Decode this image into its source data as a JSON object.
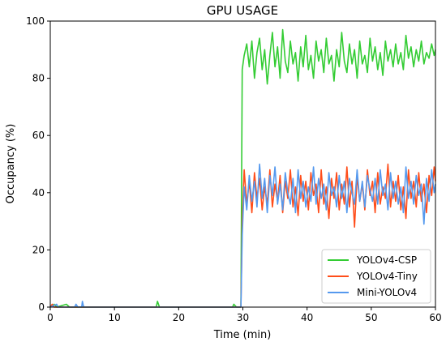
{
  "chart_data": {
    "type": "line",
    "title": "GPU USAGE",
    "xlabel": "Time (min)",
    "ylabel": "Occupancy (%)",
    "xlim": [
      0,
      60
    ],
    "ylim": [
      0,
      100
    ],
    "xticks": [
      0,
      10,
      20,
      30,
      40,
      50,
      60
    ],
    "yticks": [
      0,
      20,
      40,
      60,
      80,
      100
    ],
    "grid": false,
    "legend_position": "bottom-right",
    "series": [
      {
        "name": "YOLOv4-CSP",
        "color": "#33cc33",
        "points": [
          [
            0,
            0
          ],
          [
            0.6,
            1
          ],
          [
            1,
            0
          ],
          [
            2.5,
            1
          ],
          [
            3,
            0
          ],
          [
            16.5,
            0
          ],
          [
            16.7,
            2
          ],
          [
            17,
            0
          ],
          [
            28.4,
            0
          ],
          [
            28.6,
            1
          ],
          [
            29,
            0
          ],
          [
            29.7,
            0
          ],
          [
            29.9,
            83
          ],
          [
            30.2,
            88
          ],
          [
            30.6,
            92
          ],
          [
            31,
            84
          ],
          [
            31.4,
            93
          ],
          [
            31.8,
            80
          ],
          [
            32.2,
            89
          ],
          [
            32.6,
            94
          ],
          [
            33,
            83
          ],
          [
            33.4,
            90
          ],
          [
            33.8,
            78
          ],
          [
            34.2,
            88
          ],
          [
            34.6,
            96
          ],
          [
            35,
            84
          ],
          [
            35.4,
            91
          ],
          [
            35.8,
            80
          ],
          [
            36.2,
            97
          ],
          [
            36.6,
            86
          ],
          [
            37,
            82
          ],
          [
            37.4,
            93
          ],
          [
            37.8,
            85
          ],
          [
            38.2,
            89
          ],
          [
            38.6,
            79
          ],
          [
            39,
            91
          ],
          [
            39.4,
            84
          ],
          [
            39.8,
            95
          ],
          [
            40.2,
            83
          ],
          [
            40.6,
            88
          ],
          [
            41,
            80
          ],
          [
            41.4,
            93
          ],
          [
            41.8,
            86
          ],
          [
            42.2,
            90
          ],
          [
            42.6,
            82
          ],
          [
            43,
            94
          ],
          [
            43.4,
            85
          ],
          [
            43.8,
            88
          ],
          [
            44.2,
            79
          ],
          [
            44.6,
            90
          ],
          [
            45,
            84
          ],
          [
            45.4,
            96
          ],
          [
            45.8,
            86
          ],
          [
            46.2,
            82
          ],
          [
            46.6,
            92
          ],
          [
            47,
            85
          ],
          [
            47.4,
            90
          ],
          [
            47.8,
            80
          ],
          [
            48.2,
            93
          ],
          [
            48.6,
            85
          ],
          [
            49,
            88
          ],
          [
            49.4,
            82
          ],
          [
            49.8,
            94
          ],
          [
            50.2,
            86
          ],
          [
            50.6,
            91
          ],
          [
            51,
            83
          ],
          [
            51.4,
            89
          ],
          [
            51.8,
            81
          ],
          [
            52.2,
            93
          ],
          [
            52.6,
            86
          ],
          [
            53,
            90
          ],
          [
            53.4,
            84
          ],
          [
            53.8,
            92
          ],
          [
            54.2,
            85
          ],
          [
            54.6,
            89
          ],
          [
            55,
            83
          ],
          [
            55.4,
            95
          ],
          [
            55.8,
            87
          ],
          [
            56.2,
            91
          ],
          [
            56.6,
            84
          ],
          [
            57,
            90
          ],
          [
            57.4,
            86
          ],
          [
            57.8,
            93
          ],
          [
            58.2,
            85
          ],
          [
            58.6,
            89
          ],
          [
            59,
            87
          ],
          [
            59.4,
            92
          ],
          [
            59.8,
            88
          ],
          [
            60,
            90
          ]
        ]
      },
      {
        "name": "YOLOv4-Tiny",
        "color": "#ff4d1a",
        "points": [
          [
            0,
            0
          ],
          [
            0.3,
            1
          ],
          [
            0.6,
            0
          ],
          [
            29.7,
            0
          ],
          [
            29.9,
            30
          ],
          [
            30.2,
            48
          ],
          [
            30.6,
            36
          ],
          [
            31,
            44
          ],
          [
            31.4,
            33
          ],
          [
            31.8,
            47
          ],
          [
            32.2,
            38
          ],
          [
            32.6,
            45
          ],
          [
            33,
            34
          ],
          [
            33.4,
            42
          ],
          [
            33.8,
            36
          ],
          [
            34.2,
            48
          ],
          [
            34.6,
            35
          ],
          [
            35,
            43
          ],
          [
            35.4,
            37
          ],
          [
            35.8,
            46
          ],
          [
            36.2,
            33
          ],
          [
            36.6,
            44
          ],
          [
            37,
            38
          ],
          [
            37.4,
            48
          ],
          [
            37.8,
            35
          ],
          [
            38.2,
            42
          ],
          [
            38.6,
            32
          ],
          [
            39,
            46
          ],
          [
            39.4,
            37
          ],
          [
            39.8,
            44
          ],
          [
            40.2,
            34
          ],
          [
            40.6,
            47
          ],
          [
            41,
            39
          ],
          [
            41.4,
            43
          ],
          [
            41.8,
            33
          ],
          [
            42.2,
            48
          ],
          [
            42.6,
            36
          ],
          [
            43,
            42
          ],
          [
            43.4,
            31
          ],
          [
            43.8,
            45
          ],
          [
            44.2,
            38
          ],
          [
            44.6,
            47
          ],
          [
            45,
            34
          ],
          [
            45.4,
            43
          ],
          [
            45.8,
            36
          ],
          [
            46.2,
            49
          ],
          [
            46.6,
            35
          ],
          [
            47,
            44
          ],
          [
            47.4,
            28
          ],
          [
            47.8,
            46
          ],
          [
            48.2,
            37
          ],
          [
            48.6,
            43
          ],
          [
            49,
            34
          ],
          [
            49.4,
            48
          ],
          [
            49.8,
            39
          ],
          [
            50.2,
            44
          ],
          [
            50.6,
            33
          ],
          [
            51,
            47
          ],
          [
            51.4,
            36
          ],
          [
            51.8,
            42
          ],
          [
            52.2,
            38
          ],
          [
            52.6,
            50
          ],
          [
            53,
            35
          ],
          [
            53.4,
            44
          ],
          [
            53.8,
            37
          ],
          [
            54.2,
            46
          ],
          [
            54.6,
            34
          ],
          [
            55,
            42
          ],
          [
            55.4,
            31
          ],
          [
            55.8,
            48
          ],
          [
            56.2,
            38
          ],
          [
            56.6,
            44
          ],
          [
            57,
            35
          ],
          [
            57.4,
            47
          ],
          [
            57.8,
            37
          ],
          [
            58.2,
            43
          ],
          [
            58.6,
            33
          ],
          [
            59,
            46
          ],
          [
            59.4,
            39
          ],
          [
            59.8,
            49
          ],
          [
            60,
            44
          ]
        ]
      },
      {
        "name": "Mini-YOLOv4",
        "color": "#5599ee",
        "points": [
          [
            0,
            0
          ],
          [
            1,
            1
          ],
          [
            1.2,
            0
          ],
          [
            3.8,
            0
          ],
          [
            4,
            1
          ],
          [
            4.3,
            0
          ],
          [
            4.9,
            0
          ],
          [
            5,
            2
          ],
          [
            5.2,
            0
          ],
          [
            29.7,
            0
          ],
          [
            29.9,
            25
          ],
          [
            30.2,
            42
          ],
          [
            30.6,
            34
          ],
          [
            31,
            46
          ],
          [
            31.4,
            37
          ],
          [
            31.8,
            44
          ],
          [
            32.2,
            35
          ],
          [
            32.6,
            50
          ],
          [
            33,
            38
          ],
          [
            33.4,
            45
          ],
          [
            33.8,
            33
          ],
          [
            34.2,
            46
          ],
          [
            34.6,
            39
          ],
          [
            35,
            49
          ],
          [
            35.4,
            36
          ],
          [
            35.8,
            43
          ],
          [
            36.2,
            34
          ],
          [
            36.6,
            47
          ],
          [
            37,
            40
          ],
          [
            37.4,
            36
          ],
          [
            37.8,
            45
          ],
          [
            38.2,
            33
          ],
          [
            38.6,
            48
          ],
          [
            39,
            38
          ],
          [
            39.4,
            44
          ],
          [
            39.8,
            35
          ],
          [
            40.2,
            42
          ],
          [
            40.6,
            37
          ],
          [
            41,
            49
          ],
          [
            41.4,
            36
          ],
          [
            41.8,
            45
          ],
          [
            42.2,
            38
          ],
          [
            42.6,
            43
          ],
          [
            43,
            34
          ],
          [
            43.4,
            47
          ],
          [
            43.8,
            39
          ],
          [
            44.2,
            42
          ],
          [
            44.6,
            35
          ],
          [
            45,
            46
          ],
          [
            45.4,
            38
          ],
          [
            45.8,
            44
          ],
          [
            46.2,
            33
          ],
          [
            46.6,
            45
          ],
          [
            47,
            40
          ],
          [
            47.4,
            36
          ],
          [
            47.8,
            48
          ],
          [
            48.2,
            37
          ],
          [
            48.6,
            44
          ],
          [
            49,
            35
          ],
          [
            49.4,
            46
          ],
          [
            49.8,
            41
          ],
          [
            50.2,
            37
          ],
          [
            50.6,
            45
          ],
          [
            51,
            36
          ],
          [
            51.4,
            48
          ],
          [
            51.8,
            39
          ],
          [
            52.2,
            43
          ],
          [
            52.6,
            34
          ],
          [
            53,
            47
          ],
          [
            53.4,
            38
          ],
          [
            53.8,
            44
          ],
          [
            54.2,
            36
          ],
          [
            54.6,
            42
          ],
          [
            55,
            33
          ],
          [
            55.4,
            49
          ],
          [
            55.8,
            38
          ],
          [
            56.2,
            44
          ],
          [
            56.6,
            36
          ],
          [
            57,
            46
          ],
          [
            57.4,
            39
          ],
          [
            57.8,
            43
          ],
          [
            58.2,
            29
          ],
          [
            58.6,
            45
          ],
          [
            59,
            37
          ],
          [
            59.4,
            48
          ],
          [
            59.8,
            40
          ],
          [
            60,
            43
          ]
        ]
      }
    ]
  }
}
